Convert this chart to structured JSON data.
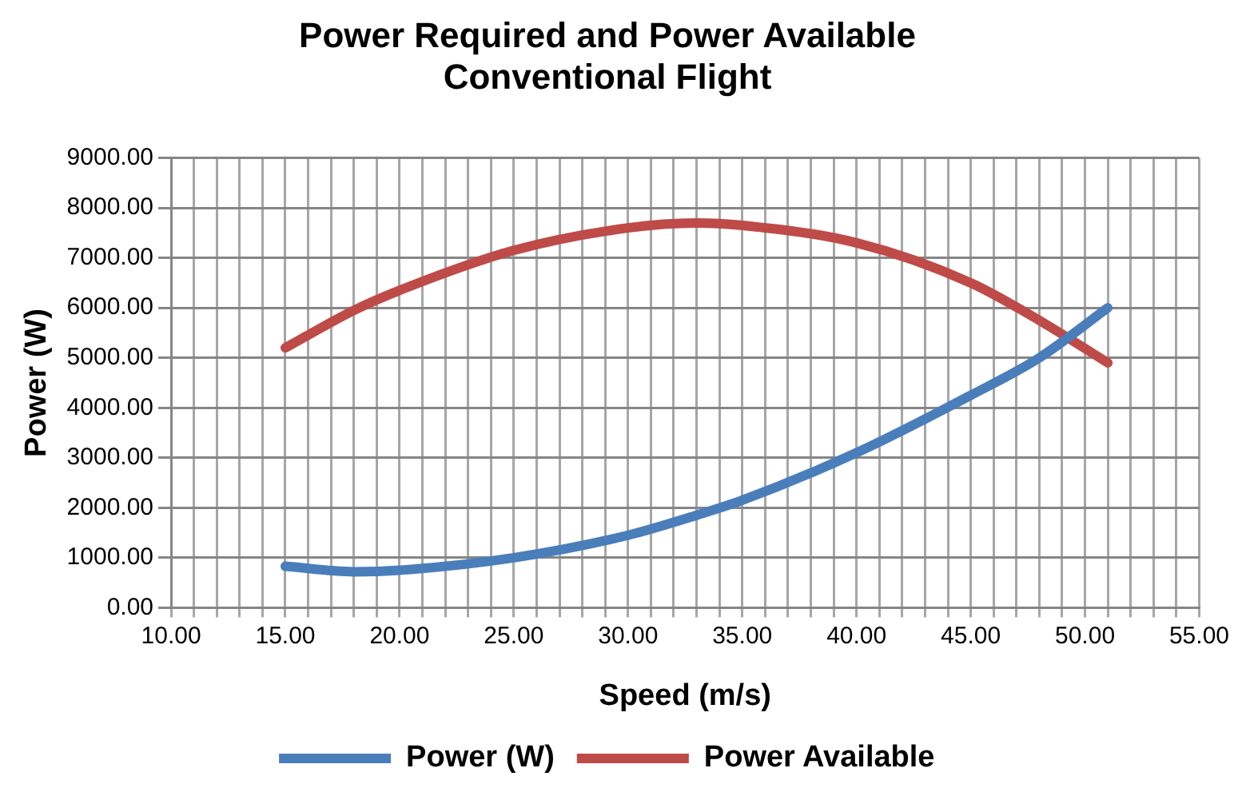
{
  "chart_data": {
    "type": "line",
    "title": [
      "Power Required and Power Available",
      "Conventional Flight"
    ],
    "xlabel": "Speed (m/s)",
    "ylabel": "Power (W)",
    "xlim": [
      10,
      55
    ],
    "xticks": [
      {
        "value": 10,
        "label": "10.00"
      },
      {
        "value": 11,
        "label": null
      },
      {
        "value": 12,
        "label": null
      },
      {
        "value": 13,
        "label": null
      },
      {
        "value": 14,
        "label": null
      },
      {
        "value": 15,
        "label": "15.00"
      },
      {
        "value": 16,
        "label": null
      },
      {
        "value": 17,
        "label": null
      },
      {
        "value": 18,
        "label": null
      },
      {
        "value": 19,
        "label": null
      },
      {
        "value": 20,
        "label": "20.00"
      },
      {
        "value": 21,
        "label": null
      },
      {
        "value": 22,
        "label": null
      },
      {
        "value": 23,
        "label": null
      },
      {
        "value": 24,
        "label": null
      },
      {
        "value": 25,
        "label": "25.00"
      },
      {
        "value": 26,
        "label": null
      },
      {
        "value": 27,
        "label": null
      },
      {
        "value": 28,
        "label": null
      },
      {
        "value": 29,
        "label": null
      },
      {
        "value": 30,
        "label": "30.00"
      },
      {
        "value": 31,
        "label": null
      },
      {
        "value": 32,
        "label": null
      },
      {
        "value": 33,
        "label": null
      },
      {
        "value": 34,
        "label": null
      },
      {
        "value": 35,
        "label": "35.00"
      },
      {
        "value": 36,
        "label": null
      },
      {
        "value": 37,
        "label": null
      },
      {
        "value": 38,
        "label": null
      },
      {
        "value": 39,
        "label": null
      },
      {
        "value": 40,
        "label": "40.00"
      },
      {
        "value": 41,
        "label": null
      },
      {
        "value": 42,
        "label": null
      },
      {
        "value": 43,
        "label": null
      },
      {
        "value": 44,
        "label": null
      },
      {
        "value": 45,
        "label": "45.00"
      },
      {
        "value": 46,
        "label": null
      },
      {
        "value": 47,
        "label": null
      },
      {
        "value": 48,
        "label": null
      },
      {
        "value": 49,
        "label": null
      },
      {
        "value": 50,
        "label": "50.00"
      },
      {
        "value": 51,
        "label": null
      },
      {
        "value": 52,
        "label": null
      },
      {
        "value": 53,
        "label": null
      },
      {
        "value": 54,
        "label": null
      },
      {
        "value": 55,
        "label": "55.00"
      }
    ],
    "ylim": [
      0,
      9000
    ],
    "yticks": [
      {
        "value": 0,
        "label": "0.00"
      },
      {
        "value": 1000,
        "label": "1000.00"
      },
      {
        "value": 2000,
        "label": "2000.00"
      },
      {
        "value": 3000,
        "label": "3000.00"
      },
      {
        "value": 4000,
        "label": "4000.00"
      },
      {
        "value": 5000,
        "label": "5000.00"
      },
      {
        "value": 6000,
        "label": "6000.00"
      },
      {
        "value": 7000,
        "label": "7000.00"
      },
      {
        "value": 8000,
        "label": "8000.00"
      },
      {
        "value": 9000,
        "label": "9000.00"
      }
    ],
    "x": [
      15,
      18,
      20,
      25,
      30,
      33,
      35,
      40,
      45,
      48,
      51
    ],
    "series": [
      {
        "name": "Power (W)",
        "color": "#4a7ebb",
        "values": [
          830,
          720,
          750,
          1000,
          1450,
          1850,
          2150,
          3100,
          4250,
          5000,
          6000
        ]
      },
      {
        "name": "Power Available",
        "color": "#be4b48",
        "values": [
          5200,
          5950,
          6350,
          7150,
          7600,
          7700,
          7650,
          7300,
          6500,
          5750,
          4900
        ]
      }
    ],
    "grid": true,
    "legend": "bottom",
    "marker": "none",
    "line_style": "solid"
  }
}
